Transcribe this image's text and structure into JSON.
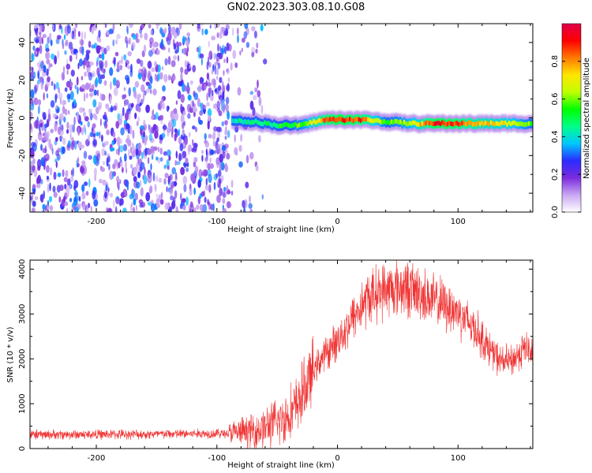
{
  "title": "GN02.2023.303.08.10.G08",
  "chart_data": [
    {
      "type": "heatmap",
      "name": "spectrogram",
      "xlabel": "Height of straight line (km)",
      "ylabel": "Frequency (Hz)",
      "xlim": [
        -255,
        162
      ],
      "ylim": [
        -50,
        50
      ],
      "xticks": [
        -200,
        -100,
        0,
        100
      ],
      "yticks": [
        -40,
        -20,
        0,
        20,
        40
      ],
      "grid": false,
      "colorbar": {
        "label": "Normalized spectral amplitude",
        "range": [
          0,
          1
        ],
        "ticks": [
          0.0,
          0.2,
          0.4,
          0.6,
          0.8
        ],
        "colormap": [
          "#ffffff",
          "#c9a7f2",
          "#7b2bdd",
          "#2b2bff",
          "#00c8ff",
          "#00ff88",
          "#00ff00",
          "#bfff00",
          "#ffe600",
          "#ff7a00",
          "#ff0000",
          "#e0004a"
        ]
      },
      "noise_region_x": [
        -255,
        -60
      ],
      "signal_track": {
        "x": [
          -88,
          -80,
          -70,
          -60,
          -50,
          -40,
          -30,
          -20,
          -10,
          0,
          20,
          40,
          60,
          80,
          100,
          120,
          140,
          162
        ],
        "y": [
          -1,
          -2,
          -2,
          -3,
          -4,
          -4,
          -4,
          -2,
          -1,
          -1,
          -1,
          -2,
          -3,
          -3,
          -3,
          -3,
          -3,
          -3
        ],
        "amplitude": [
          0.4,
          0.45,
          0.45,
          0.45,
          0.5,
          0.55,
          0.6,
          0.7,
          0.85,
          0.9,
          0.85,
          0.55,
          0.65,
          0.9,
          0.85,
          0.75,
          0.7,
          0.55
        ]
      }
    },
    {
      "type": "line",
      "name": "snr",
      "xlabel": "Height of straight line (km)",
      "ylabel": "SNR (10 * v/v)",
      "xlim": [
        -255,
        162
      ],
      "ylim": [
        0,
        4200
      ],
      "xticks": [
        -200,
        -100,
        0,
        100
      ],
      "yticks": [
        0,
        1000,
        2000,
        3000,
        4000
      ],
      "grid": false,
      "color": "#f03232",
      "series": [
        {
          "x": [
            -255,
            -150,
            -90,
            -75,
            -65,
            -55,
            -45,
            -35,
            -25,
            -15,
            -5,
            5,
            15,
            25,
            35,
            45,
            55,
            65,
            80,
            100,
            115,
            125,
            135,
            145,
            155,
            162
          ],
          "y": [
            310,
            320,
            340,
            380,
            420,
            520,
            650,
            900,
            1450,
            1950,
            2250,
            2600,
            3000,
            3350,
            3500,
            3550,
            3600,
            3500,
            3300,
            3050,
            2650,
            2250,
            1950,
            1950,
            2250,
            2100
          ]
        }
      ]
    }
  ]
}
